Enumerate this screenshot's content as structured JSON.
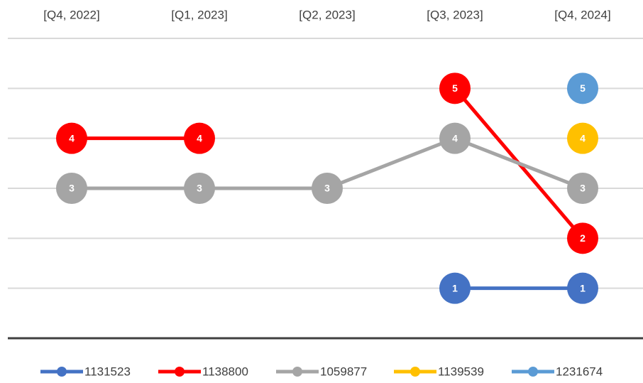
{
  "chart_data": {
    "type": "line",
    "categories": [
      "[Q4, 2022]",
      "[Q1, 2023]",
      "[Q2, 2023]",
      "[Q3, 2023]",
      "[Q4, 2024]"
    ],
    "series": [
      {
        "name": "1131523",
        "color": "#4472c4",
        "values": [
          null,
          null,
          null,
          1,
          1
        ]
      },
      {
        "name": "1138800",
        "color": "#ff0000",
        "values": [
          4,
          4,
          null,
          5,
          2
        ]
      },
      {
        "name": "1059877",
        "color": "#a5a5a5",
        "values": [
          3,
          3,
          3,
          4,
          3
        ]
      },
      {
        "name": "1139539",
        "color": "#ffc000",
        "values": [
          null,
          null,
          null,
          null,
          4
        ]
      },
      {
        "name": "1231674",
        "color": "#5b9bd5",
        "values": [
          null,
          null,
          null,
          null,
          5
        ]
      }
    ],
    "ylim": [
      0,
      6
    ],
    "yticks": [
      1,
      2,
      3,
      4,
      5,
      6
    ],
    "grid": true,
    "legend": "bottom"
  }
}
